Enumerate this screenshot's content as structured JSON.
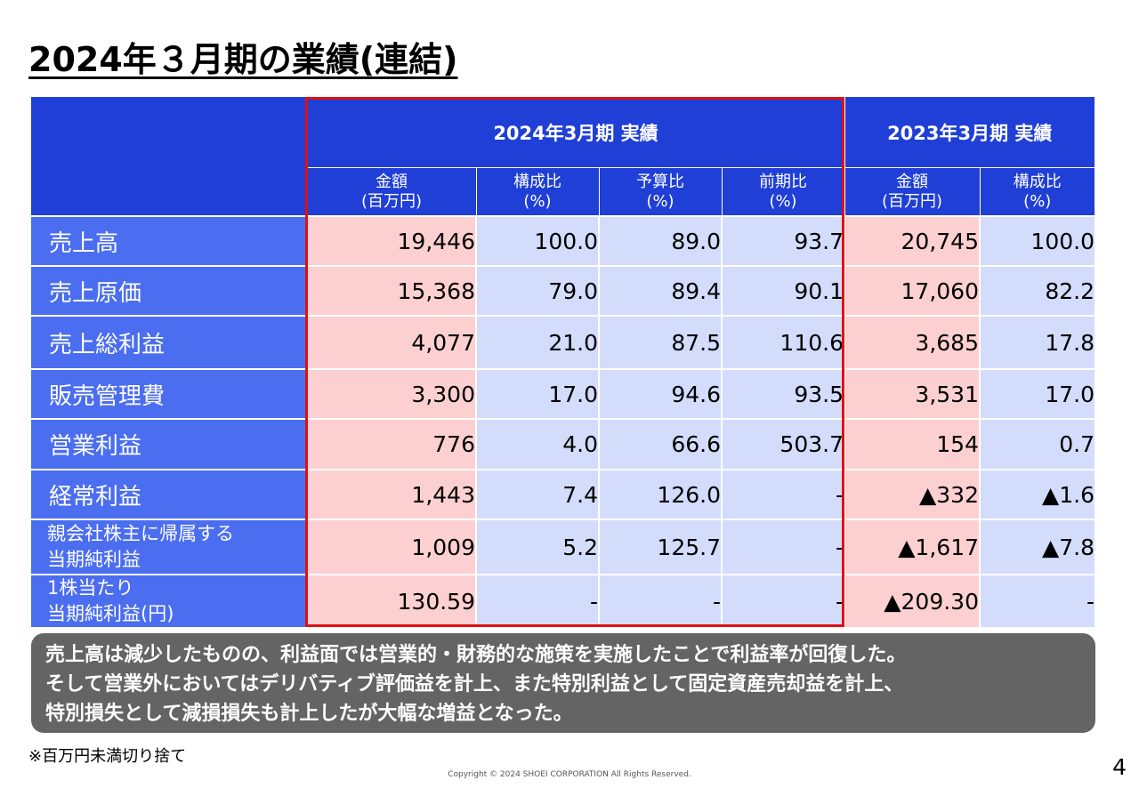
{
  "title": "2024年３月期の業績(連結)",
  "table": {
    "group_2024": "2024年3月期 実績",
    "group_2023": "2023年3月期 実績",
    "sub_headers": [
      [
        "金額",
        "(百万円)"
      ],
      [
        "構成比",
        "(%)"
      ],
      [
        "予算比",
        "(%)"
      ],
      [
        "前期比",
        "(%)"
      ],
      [
        "金額",
        "(百万円)"
      ],
      [
        "構成比",
        "(%)"
      ]
    ],
    "rows": [
      {
        "label": [
          "売上高"
        ],
        "values": [
          "19,446",
          "100.0",
          "89.0",
          "93.7",
          "20,745",
          "100.0"
        ]
      },
      {
        "label": [
          "売上原価"
        ],
        "values": [
          "15,368",
          "79.0",
          "89.4",
          "90.1",
          "17,060",
          "82.2"
        ]
      },
      {
        "label": [
          "売上総利益"
        ],
        "values": [
          "4,077",
          "21.0",
          "87.5",
          "110.6",
          "3,685",
          "17.8"
        ]
      },
      {
        "label": [
          "販売管理費"
        ],
        "values": [
          "3,300",
          "17.0",
          "94.6",
          "93.5",
          "3,531",
          "17.0"
        ]
      },
      {
        "label": [
          "営業利益"
        ],
        "values": [
          "776",
          "4.0",
          "66.6",
          "503.7",
          "154",
          "0.7"
        ]
      },
      {
        "label": [
          "経常利益"
        ],
        "values": [
          "1,443",
          "7.4",
          "126.0",
          "-",
          "▲332",
          "▲1.6"
        ]
      },
      {
        "label": [
          "親会社株主に帰属する",
          "当期純利益"
        ],
        "values": [
          "1,009",
          "5.2",
          "125.7",
          "-",
          "▲1,617",
          "▲7.8"
        ]
      },
      {
        "label": [
          "1株当たり",
          "当期純利益(円)"
        ],
        "values": [
          "130.59",
          "-",
          "-",
          "-",
          "▲209.30",
          "-"
        ]
      }
    ]
  },
  "summary": [
    "売上高は減少したものの、利益面では営業的・財務的な施策を実施したことで利益率が回復した。",
    "そして営業外においてはデリバティブ評価益を計上、また特別利益として固定資産売却益を計上、",
    "特別損失として減損損失も計上したが大幅な増益となった。"
  ],
  "note": "※百万円未満切り捨て",
  "copyright": "Copyright © 2024 SHOEI CORPORATION All Rights Reserved.",
  "page_number": "4"
}
